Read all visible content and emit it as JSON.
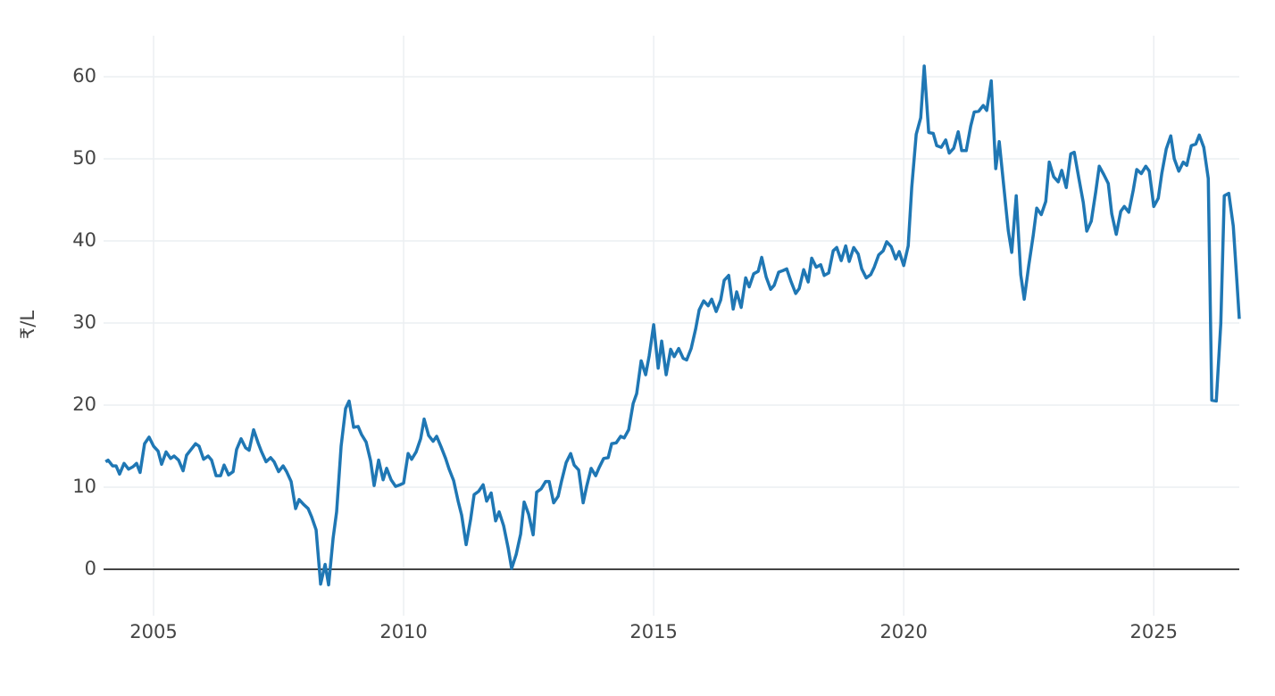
{
  "chart_data": {
    "type": "line",
    "y_label": "₹/L",
    "color": "#1f77b4",
    "grid": true,
    "xlim": [
      2004,
      2026.71
    ],
    "xticks": [
      2005,
      2010,
      2015,
      2020,
      2025
    ],
    "ylim": [
      -5.65,
      65
    ],
    "yticks": [
      0,
      10,
      20,
      30,
      40,
      50,
      60
    ],
    "x": [
      2004.04,
      2004.09,
      2004.18,
      2004.25,
      2004.32,
      2004.41,
      2004.5,
      2004.59,
      2004.66,
      2004.73,
      2004.82,
      2004.91,
      2005.0,
      2005.09,
      2005.16,
      2005.25,
      2005.34,
      2005.41,
      2005.5,
      2005.59,
      2005.66,
      2005.75,
      2005.84,
      2005.91,
      2006.0,
      2006.09,
      2006.16,
      2006.25,
      2006.34,
      2006.41,
      2006.5,
      2006.59,
      2006.66,
      2006.75,
      2006.84,
      2006.91,
      2007.0,
      2007.09,
      2007.16,
      2007.25,
      2007.34,
      2007.41,
      2007.5,
      2007.59,
      2007.66,
      2007.75,
      2007.84,
      2007.91,
      2008.0,
      2008.09,
      2008.16,
      2008.25,
      2008.34,
      2008.43,
      2008.5,
      2008.59,
      2008.66,
      2008.75,
      2008.84,
      2008.91,
      2009.0,
      2009.09,
      2009.16,
      2009.25,
      2009.34,
      2009.41,
      2009.5,
      2009.59,
      2009.66,
      2009.75,
      2009.84,
      2009.93,
      2010.0,
      2010.09,
      2010.16,
      2010.25,
      2010.34,
      2010.41,
      2010.5,
      2010.59,
      2010.66,
      2010.75,
      2010.84,
      2010.91,
      2011.0,
      2011.09,
      2011.16,
      2011.25,
      2011.34,
      2011.41,
      2011.5,
      2011.59,
      2011.66,
      2011.75,
      2011.84,
      2011.91,
      2012.0,
      2012.09,
      2012.16,
      2012.25,
      2012.34,
      2012.41,
      2012.5,
      2012.59,
      2012.66,
      2012.75,
      2012.84,
      2012.91,
      2013.0,
      2013.09,
      2013.16,
      2013.25,
      2013.34,
      2013.41,
      2013.5,
      2013.59,
      2013.66,
      2013.75,
      2013.84,
      2013.91,
      2014.0,
      2014.09,
      2014.16,
      2014.25,
      2014.34,
      2014.41,
      2014.5,
      2014.59,
      2014.66,
      2014.75,
      2014.84,
      2014.91,
      2015.0,
      2015.09,
      2015.16,
      2015.25,
      2015.34,
      2015.41,
      2015.5,
      2015.59,
      2015.66,
      2015.75,
      2015.84,
      2015.91,
      2016.0,
      2016.09,
      2016.16,
      2016.25,
      2016.34,
      2016.41,
      2016.5,
      2016.59,
      2016.66,
      2016.75,
      2016.84,
      2016.91,
      2017.0,
      2017.09,
      2017.16,
      2017.25,
      2017.34,
      2017.41,
      2017.5,
      2017.59,
      2017.66,
      2017.75,
      2017.84,
      2017.91,
      2018.0,
      2018.09,
      2018.16,
      2018.25,
      2018.34,
      2018.41,
      2018.5,
      2018.59,
      2018.66,
      2018.75,
      2018.84,
      2018.91,
      2019.0,
      2019.09,
      2019.16,
      2019.25,
      2019.34,
      2019.41,
      2019.5,
      2019.59,
      2019.66,
      2019.75,
      2019.84,
      2019.91,
      2020.0,
      2020.09,
      2020.16,
      2020.25,
      2020.34,
      2020.41,
      2020.5,
      2020.59,
      2020.66,
      2020.75,
      2020.84,
      2020.91,
      2021.0,
      2021.09,
      2021.16,
      2021.25,
      2021.34,
      2021.41,
      2021.5,
      2021.59,
      2021.66,
      2021.75,
      2021.84,
      2021.91,
      2022.0,
      2022.09,
      2022.16,
      2022.25,
      2022.34,
      2022.41,
      2022.5,
      2022.59,
      2022.66,
      2022.75,
      2022.84,
      2022.91,
      2023.0,
      2023.09,
      2023.16,
      2023.25,
      2023.34,
      2023.41,
      2023.5,
      2023.59,
      2023.66,
      2023.75,
      2023.84,
      2023.91,
      2024.0,
      2024.09,
      2024.16,
      2024.25,
      2024.34,
      2024.41,
      2024.5,
      2024.59,
      2024.66,
      2024.75,
      2024.84,
      2024.91,
      2025.0,
      2025.09,
      2025.16,
      2025.25,
      2025.34,
      2025.41,
      2025.5,
      2025.59,
      2025.66,
      2025.75,
      2025.84,
      2025.91,
      2026.0,
      2026.09,
      2026.16,
      2026.25,
      2026.34,
      2026.41,
      2026.5,
      2026.59,
      2026.66,
      2026.71
    ],
    "values": [
      13.1,
      13.3,
      12.6,
      12.6,
      11.6,
      12.9,
      12.2,
      12.5,
      12.9,
      11.8,
      15.3,
      16.1,
      15.0,
      14.4,
      12.8,
      14.3,
      13.5,
      13.8,
      13.3,
      12.0,
      13.9,
      14.6,
      15.3,
      15.0,
      13.4,
      13.8,
      13.3,
      11.4,
      11.4,
      12.7,
      11.5,
      11.9,
      14.6,
      15.9,
      14.8,
      14.5,
      17.0,
      15.4,
      14.3,
      13.1,
      13.6,
      13.1,
      11.9,
      12.6,
      11.9,
      10.7,
      7.4,
      8.5,
      7.9,
      7.4,
      6.4,
      4.8,
      -1.8,
      0.6,
      -1.9,
      3.8,
      7.0,
      15.0,
      19.6,
      20.5,
      17.3,
      17.4,
      16.4,
      15.5,
      13.2,
      10.2,
      13.3,
      10.9,
      12.3,
      10.9,
      10.1,
      10.3,
      10.5,
      14.1,
      13.4,
      14.3,
      15.9,
      18.3,
      16.3,
      15.6,
      16.2,
      14.9,
      13.5,
      12.2,
      10.8,
      8.3,
      6.6,
      3.0,
      6.1,
      9.1,
      9.5,
      10.3,
      8.3,
      9.3,
      5.9,
      7.0,
      5.3,
      2.6,
      0.1,
      1.8,
      4.3,
      8.2,
      6.7,
      4.2,
      9.4,
      9.8,
      10.7,
      10.7,
      8.1,
      8.9,
      10.8,
      13.0,
      14.1,
      12.7,
      12.1,
      8.1,
      10.1,
      12.3,
      11.4,
      12.4,
      13.5,
      13.6,
      15.3,
      15.4,
      16.2,
      16.0,
      17.0,
      20.2,
      21.4,
      25.4,
      23.7,
      26.0,
      29.8,
      24.5,
      27.8,
      23.7,
      26.8,
      25.9,
      26.9,
      25.7,
      25.5,
      26.9,
      29.3,
      31.6,
      32.7,
      32.1,
      32.9,
      31.4,
      32.8,
      35.2,
      35.8,
      31.7,
      33.8,
      31.9,
      35.5,
      34.4,
      36.0,
      36.3,
      38.0,
      35.6,
      34.1,
      34.6,
      36.2,
      36.4,
      36.6,
      35.0,
      33.6,
      34.2,
      36.5,
      35.0,
      37.9,
      36.8,
      37.1,
      35.8,
      36.1,
      38.8,
      39.2,
      37.6,
      39.4,
      37.5,
      39.2,
      38.4,
      36.6,
      35.5,
      35.9,
      36.8,
      38.3,
      38.8,
      39.9,
      39.3,
      37.8,
      38.7,
      37.0,
      39.4,
      46.5,
      53.0,
      55.0,
      61.3,
      53.2,
      53.1,
      51.6,
      51.4,
      52.3,
      50.7,
      51.3,
      53.3,
      51.0,
      51.0,
      54.0,
      55.7,
      55.8,
      56.5,
      55.9,
      59.5,
      48.8,
      52.1,
      46.7,
      41.3,
      38.6,
      45.5,
      35.9,
      32.9,
      37.0,
      40.7,
      44.0,
      43.2,
      44.8,
      49.6,
      47.8,
      47.2,
      48.6,
      46.5,
      50.6,
      50.8,
      47.7,
      44.7,
      41.2,
      42.4,
      46.0,
      49.1,
      48.1,
      47.0,
      43.3,
      40.8,
      43.6,
      44.2,
      43.5,
      46.2,
      48.7,
      48.2,
      49.1,
      48.5,
      44.2,
      45.2,
      48.2,
      51.2,
      52.8,
      50.0,
      48.5,
      49.6,
      49.2,
      51.6,
      51.8,
      52.9,
      51.4,
      47.6,
      20.6,
      20.5,
      29.9,
      45.5,
      45.8,
      41.8,
      35.3,
      30.5
    ]
  }
}
